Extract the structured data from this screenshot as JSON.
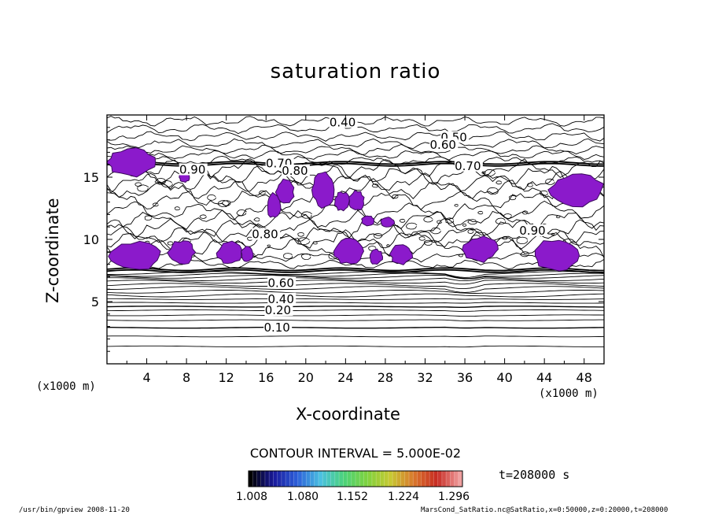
{
  "chart_data": {
    "type": "heatmap",
    "title": "saturation ratio",
    "xlabel": "X-coordinate",
    "ylabel": "Z-coordinate",
    "x_unit": "(x1000 m)",
    "y_unit": "(x1000 m)",
    "xlim": [
      0,
      50
    ],
    "ylim": [
      0,
      20
    ],
    "x_ticks": [
      "4",
      "8",
      "12",
      "16",
      "20",
      "24",
      "28",
      "32",
      "36",
      "40",
      "44",
      "48"
    ],
    "y_ticks": [
      "5",
      "10",
      "15"
    ],
    "contour_interval": "CONTOUR INTERVAL = 5.000E-02",
    "contour_labels": [
      {
        "text": "0.40",
        "x": 23.7,
        "z": 19.4
      },
      {
        "text": "0.50",
        "x": 34.9,
        "z": 18.2
      },
      {
        "text": "0.60",
        "x": 33.8,
        "z": 17.6
      },
      {
        "text": "0.70",
        "x": 17.3,
        "z": 16.1
      },
      {
        "text": "0.70",
        "x": 36.3,
        "z": 15.9
      },
      {
        "text": "0.80",
        "x": 18.9,
        "z": 15.5
      },
      {
        "text": "0.90",
        "x": 8.6,
        "z": 15.6
      },
      {
        "text": "0.90",
        "x": 42.8,
        "z": 10.7
      },
      {
        "text": "0.80",
        "x": 15.9,
        "z": 10.4
      },
      {
        "text": "0.60",
        "x": 17.5,
        "z": 6.5
      },
      {
        "text": "0.40",
        "x": 17.5,
        "z": 5.2
      },
      {
        "text": "0.20",
        "x": 17.2,
        "z": 4.3
      },
      {
        "text": "0.10",
        "x": 17.1,
        "z": 2.9
      }
    ],
    "supersaturation_regions_color": "#8B1ACB",
    "colorbar": {
      "ticks": [
        "1.008",
        "1.080",
        "1.152",
        "1.224",
        "1.296"
      ],
      "colors": [
        "#000000",
        "#1a1a9c",
        "#2c5fd9",
        "#4ac0e0",
        "#4bd27a",
        "#7fd23e",
        "#c7c832",
        "#d9772c",
        "#c72a22",
        "#f0a0a0"
      ]
    },
    "time_label": "t=208000 s"
  },
  "footer": {
    "left": "/usr/bin/gpview   2008-11-20",
    "right": "MarsCond_SatRatio.nc@SatRatio,x=0:50000,z=0:20000,t=208000"
  }
}
